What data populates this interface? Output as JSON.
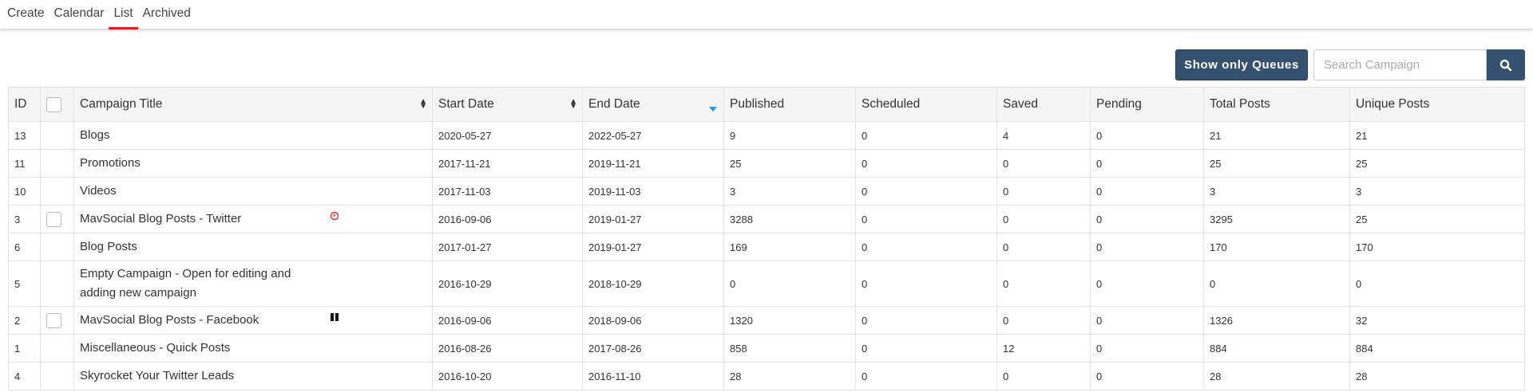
{
  "tabs": [
    {
      "label": "Create"
    },
    {
      "label": "Calendar"
    },
    {
      "label": "List",
      "active": true
    },
    {
      "label": "Archived"
    }
  ],
  "toolbar": {
    "queues_label": "Show only Queues",
    "search_placeholder": "Search Campaign",
    "search_icon": "search-icon"
  },
  "colors": {
    "accent": "#34526f",
    "active_tab": "#e02020",
    "sort_active": "#2196f3",
    "clock_icon": "#e53935"
  },
  "table": {
    "headers": {
      "id": "ID",
      "title": "Campaign Title",
      "start": "Start Date",
      "end": "End Date",
      "published": "Published",
      "scheduled": "Scheduled",
      "saved": "Saved",
      "pending": "Pending",
      "total": "Total Posts",
      "unique": "Unique Posts"
    },
    "sort": {
      "title": "sortable",
      "start": "sortable",
      "end": "descending"
    },
    "rows": [
      {
        "id": "13",
        "title": "Blogs",
        "start": "2020-05-27",
        "end": "2022-05-27",
        "published": "9",
        "scheduled": "0",
        "saved": "4",
        "pending": "0",
        "total": "21",
        "unique": "21",
        "checkbox": false,
        "icon": ""
      },
      {
        "id": "11",
        "title": "Promotions",
        "start": "2017-11-21",
        "end": "2019-11-21",
        "published": "25",
        "scheduled": "0",
        "saved": "0",
        "pending": "0",
        "total": "25",
        "unique": "25",
        "checkbox": false,
        "icon": ""
      },
      {
        "id": "10",
        "title": "Videos",
        "start": "2017-11-03",
        "end": "2019-11-03",
        "published": "3",
        "scheduled": "0",
        "saved": "0",
        "pending": "0",
        "total": "3",
        "unique": "3",
        "checkbox": false,
        "icon": ""
      },
      {
        "id": "3",
        "title": "MavSocial Blog Posts - Twitter",
        "start": "2016-09-06",
        "end": "2019-01-27",
        "published": "3288",
        "scheduled": "0",
        "saved": "0",
        "pending": "0",
        "total": "3295",
        "unique": "25",
        "checkbox": true,
        "icon": "clock-icon"
      },
      {
        "id": "6",
        "title": "Blog Posts",
        "start": "2017-01-27",
        "end": "2019-01-27",
        "published": "169",
        "scheduled": "0",
        "saved": "0",
        "pending": "0",
        "total": "170",
        "unique": "170",
        "checkbox": false,
        "icon": ""
      },
      {
        "id": "5",
        "title": "Empty Campaign - Open for editing and adding new campaign",
        "start": "2016-10-29",
        "end": "2018-10-29",
        "published": "0",
        "scheduled": "0",
        "saved": "0",
        "pending": "0",
        "total": "0",
        "unique": "0",
        "checkbox": false,
        "icon": ""
      },
      {
        "id": "2",
        "title": "MavSocial Blog Posts - Facebook",
        "start": "2016-09-06",
        "end": "2018-09-06",
        "published": "1320",
        "scheduled": "0",
        "saved": "0",
        "pending": "0",
        "total": "1326",
        "unique": "32",
        "checkbox": true,
        "icon": "pause-icon"
      },
      {
        "id": "1",
        "title": "Miscellaneous - Quick Posts",
        "start": "2016-08-26",
        "end": "2017-08-26",
        "published": "858",
        "scheduled": "0",
        "saved": "12",
        "pending": "0",
        "total": "884",
        "unique": "884",
        "checkbox": false,
        "icon": ""
      },
      {
        "id": "4",
        "title": "Skyrocket Your Twitter Leads",
        "start": "2016-10-20",
        "end": "2016-11-10",
        "published": "28",
        "scheduled": "0",
        "saved": "0",
        "pending": "0",
        "total": "28",
        "unique": "28",
        "checkbox": false,
        "icon": ""
      }
    ]
  }
}
